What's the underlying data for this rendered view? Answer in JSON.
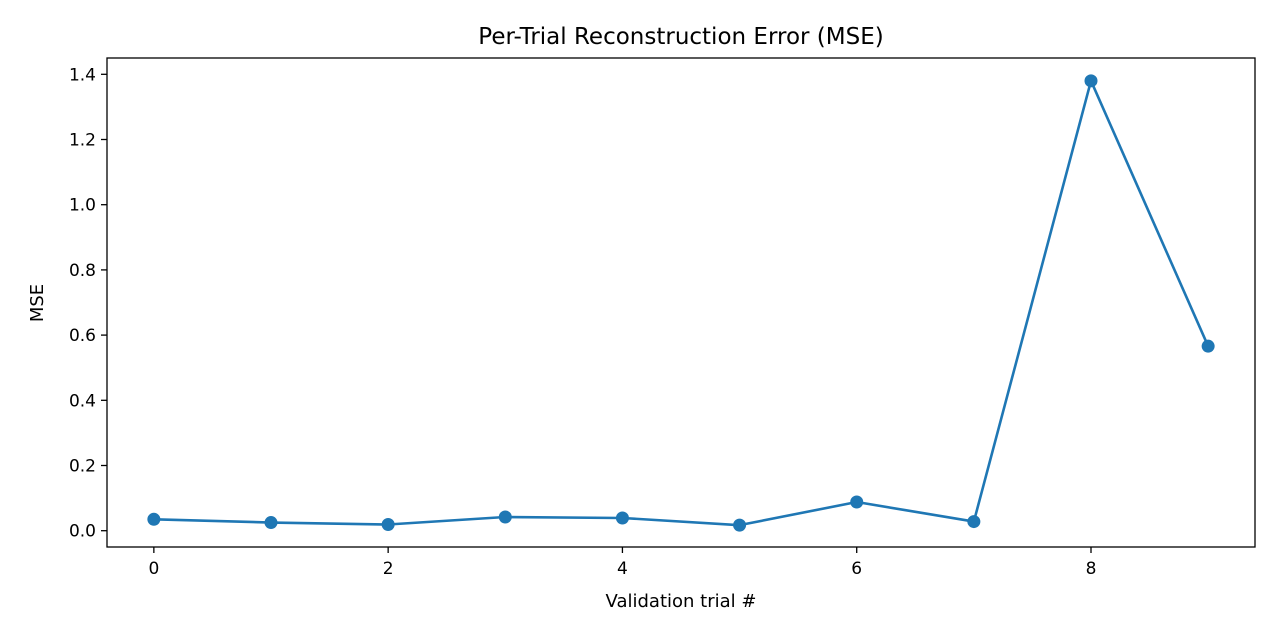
{
  "chart_data": {
    "type": "line",
    "title": "Per-Trial Reconstruction Error (MSE)",
    "xlabel": "Validation trial #",
    "ylabel": "MSE",
    "x": [
      0,
      1,
      2,
      3,
      4,
      5,
      6,
      7,
      8,
      9
    ],
    "series": [
      {
        "values": [
          0.035,
          0.025,
          0.019,
          0.042,
          0.039,
          0.017,
          0.088,
          0.028,
          1.38,
          0.566
        ],
        "color": "#1f77b4",
        "marker": "circle"
      }
    ],
    "xlim": [
      -0.4,
      9.4
    ],
    "ylim": [
      -0.05,
      1.45
    ],
    "xticks": [
      0,
      2,
      4,
      6,
      8
    ],
    "xtick_labels": [
      "0",
      "2",
      "4",
      "6",
      "8"
    ],
    "yticks": [
      0.0,
      0.2,
      0.4,
      0.6,
      0.8,
      1.0,
      1.2,
      1.4
    ],
    "ytick_labels": [
      "0.0",
      "0.2",
      "0.4",
      "0.6",
      "0.8",
      "1.0",
      "1.2",
      "1.4"
    ],
    "grid": false,
    "legend": "none"
  }
}
